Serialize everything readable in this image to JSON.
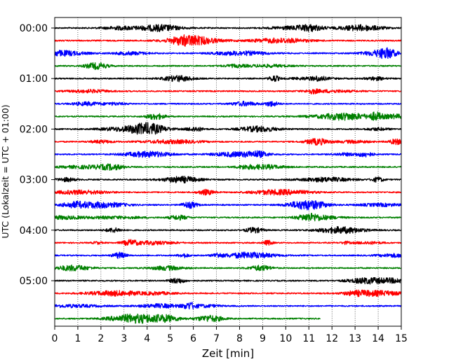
{
  "chart_data": {
    "type": "line",
    "subtype": "helicorder",
    "title": "",
    "xlabel": "Zeit  [min]",
    "ylabel": "UTC (Lokalzeit = UTC + 01:00)",
    "xlim": [
      0,
      15
    ],
    "x_ticks": [
      "0",
      "1",
      "2",
      "3",
      "4",
      "5",
      "6",
      "7",
      "8",
      "9",
      "10",
      "11",
      "12",
      "13",
      "14",
      "15"
    ],
    "y_ticks": [
      "00:00",
      "01:00",
      "02:00",
      "03:00",
      "04:00",
      "05:00"
    ],
    "grid": "vertical dotted lines at each minute",
    "trace_interval_minutes": 15,
    "trace_colors": [
      "#000000",
      "#ff0000",
      "#0000ff",
      "#008000"
    ],
    "traces": [
      {
        "start": "00:00",
        "color": "#000000",
        "end_minute": 15
      },
      {
        "start": "00:15",
        "color": "#ff0000",
        "end_minute": 15
      },
      {
        "start": "00:30",
        "color": "#0000ff",
        "end_minute": 15
      },
      {
        "start": "00:45",
        "color": "#008000",
        "end_minute": 15
      },
      {
        "start": "01:00",
        "color": "#000000",
        "end_minute": 15
      },
      {
        "start": "01:15",
        "color": "#ff0000",
        "end_minute": 15
      },
      {
        "start": "01:30",
        "color": "#0000ff",
        "end_minute": 15
      },
      {
        "start": "01:45",
        "color": "#008000",
        "end_minute": 15
      },
      {
        "start": "02:00",
        "color": "#000000",
        "end_minute": 15
      },
      {
        "start": "02:15",
        "color": "#ff0000",
        "end_minute": 15
      },
      {
        "start": "02:30",
        "color": "#0000ff",
        "end_minute": 15
      },
      {
        "start": "02:45",
        "color": "#008000",
        "end_minute": 15
      },
      {
        "start": "03:00",
        "color": "#000000",
        "end_minute": 15
      },
      {
        "start": "03:15",
        "color": "#ff0000",
        "end_minute": 15
      },
      {
        "start": "03:30",
        "color": "#0000ff",
        "end_minute": 15
      },
      {
        "start": "03:45",
        "color": "#008000",
        "end_minute": 15
      },
      {
        "start": "04:00",
        "color": "#000000",
        "end_minute": 15
      },
      {
        "start": "04:15",
        "color": "#ff0000",
        "end_minute": 15
      },
      {
        "start": "04:30",
        "color": "#0000ff",
        "end_minute": 15
      },
      {
        "start": "04:45",
        "color": "#008000",
        "end_minute": 15
      },
      {
        "start": "05:00",
        "color": "#000000",
        "end_minute": 15
      },
      {
        "start": "05:15",
        "color": "#ff0000",
        "end_minute": 15
      },
      {
        "start": "05:30",
        "color": "#0000ff",
        "end_minute": 15
      },
      {
        "start": "05:45",
        "color": "#008000",
        "end_minute": 11.5
      }
    ]
  }
}
